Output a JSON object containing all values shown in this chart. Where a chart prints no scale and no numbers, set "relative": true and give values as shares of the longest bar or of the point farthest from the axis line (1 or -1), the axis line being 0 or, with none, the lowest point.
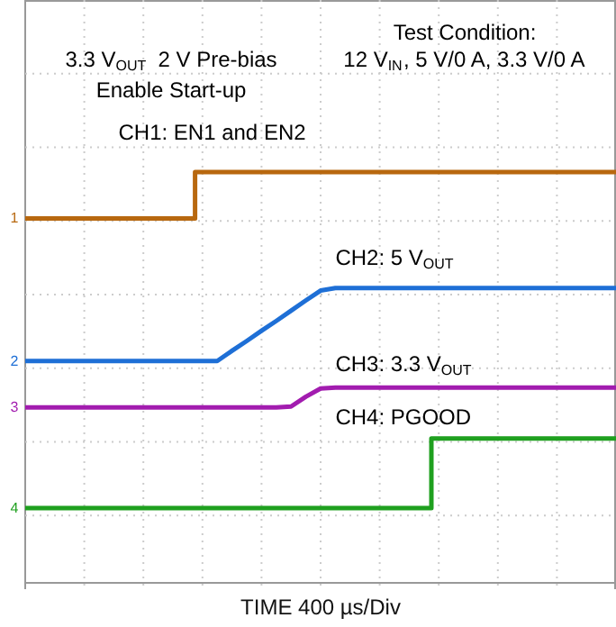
{
  "chart_data": {
    "type": "line",
    "relative": true,
    "grid": true,
    "legend": false,
    "line_style": "solid",
    "xlabel": "TIME 400 µs/Div",
    "categories": [
      null,
      null,
      null,
      null,
      null,
      null,
      null,
      null,
      null,
      null,
      null,
      null,
      null,
      null,
      null,
      null,
      null,
      null,
      null,
      null,
      null,
      null,
      null,
      null,
      null,
      null,
      null,
      null,
      null,
      null,
      null,
      null,
      null,
      null,
      null,
      null,
      null,
      null,
      null,
      null,
      null
    ],
    "annotations": [
      "3.3 V$_{OUT}$  2 V Pre-bias",
      "Enable Start-up",
      "Test Condition:",
      "12 V$_{IN}$, 5 V/0 A, 3.3 V/0 A",
      "1",
      "2",
      "3",
      "4"
    ],
    "series": [
      {
        "name": "CH1: EN1 and EN2",
        "type": "step",
        "color": "#b8680f",
        "values": [
          0.887,
          0.887,
          0.887,
          0.887,
          0.887,
          0.887,
          0.887,
          0.887,
          0.887,
          0.887,
          0.887,
          0.887,
          1,
          1,
          1,
          1,
          1,
          1,
          1,
          1,
          1,
          1,
          1,
          1,
          1,
          1,
          1,
          1,
          1,
          1,
          1,
          1,
          1,
          1,
          1,
          1,
          1,
          1,
          1,
          1,
          1
        ]
      },
      {
        "name": "CH2: 5 V$_{OUT}$",
        "color": "#1e6fd6",
        "values": [
          0.539,
          0.539,
          0.539,
          0.539,
          0.539,
          0.539,
          0.539,
          0.539,
          0.539,
          0.539,
          0.539,
          0.539,
          0.539,
          0.539,
          0.564,
          0.588,
          0.613,
          0.637,
          0.662,
          0.687,
          0.711,
          0.717,
          0.717,
          0.717,
          0.717,
          0.717,
          0.717,
          0.717,
          0.717,
          0.717,
          0.717,
          0.717,
          0.717,
          0.717,
          0.717,
          0.717,
          0.717,
          0.717,
          0.717,
          0.717,
          0.717
        ]
      },
      {
        "name": "CH3: 3.3 V$_{OUT}$",
        "color": "#a21caf",
        "values": [
          0.426,
          0.426,
          0.426,
          0.426,
          0.426,
          0.426,
          0.426,
          0.426,
          0.426,
          0.426,
          0.426,
          0.426,
          0.426,
          0.426,
          0.426,
          0.426,
          0.426,
          0.426,
          0.428,
          0.452,
          0.472,
          0.474,
          0.474,
          0.474,
          0.474,
          0.474,
          0.474,
          0.474,
          0.474,
          0.474,
          0.474,
          0.474,
          0.474,
          0.474,
          0.474,
          0.474,
          0.474,
          0.474,
          0.474,
          0.474,
          0.474
        ]
      },
      {
        "name": "CH4: PGOOD",
        "type": "step",
        "color": "#1fa01f",
        "values": [
          0.18,
          0.18,
          0.18,
          0.18,
          0.18,
          0.18,
          0.18,
          0.18,
          0.18,
          0.18,
          0.18,
          0.18,
          0.18,
          0.18,
          0.18,
          0.18,
          0.18,
          0.18,
          0.18,
          0.18,
          0.18,
          0.18,
          0.18,
          0.18,
          0.18,
          0.18,
          0.18,
          0.18,
          0.35,
          0.35,
          0.35,
          0.35,
          0.35,
          0.35,
          0.35,
          0.35,
          0.35,
          0.35,
          0.35,
          0.35,
          0.35
        ]
      }
    ]
  }
}
